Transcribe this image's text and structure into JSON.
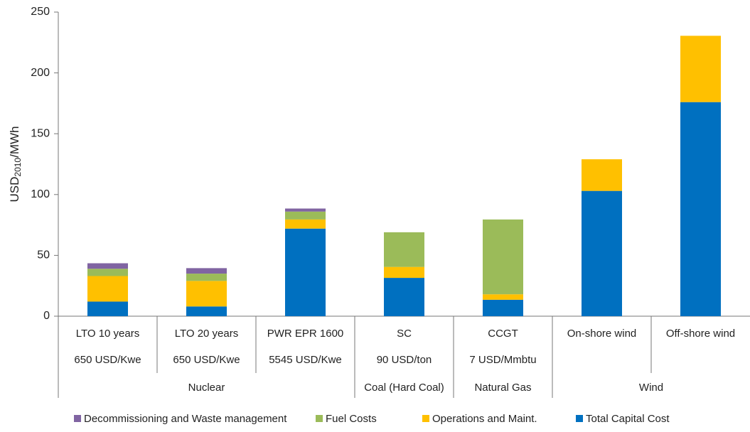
{
  "chart_data": {
    "type": "stacked_bar",
    "ylabel": [
      "USD",
      "2010",
      "/MWh"
    ],
    "categories": [
      "LTO 10 years",
      "LTO 20 years",
      "PWR EPR 1600",
      "SC",
      "CCGT",
      "On-shore wind",
      "Off-shore wind"
    ],
    "sublabels": [
      "650 USD/Kwe",
      "650 USD/Kwe",
      "5545 USD/Kwe",
      "90 USD/ton",
      "7 USD/Mmbtu",
      null,
      null
    ],
    "groups": [
      {
        "label": "Nuclear",
        "span": 3
      },
      {
        "label": "Coal (Hard Coal)",
        "span": 1
      },
      {
        "label": "Natural Gas",
        "span": 1
      },
      {
        "label": "Wind",
        "span": 2
      }
    ],
    "series": [
      {
        "name": "Total Capital Cost",
        "color": "#0070c0",
        "values": [
          12,
          8,
          72,
          31.5,
          13.5,
          103,
          176
        ]
      },
      {
        "name": "Operations and Maint.",
        "color": "#ffc000",
        "values": [
          21,
          21,
          7.5,
          9,
          4.5,
          26,
          54.5
        ]
      },
      {
        "name": "Fuel Costs",
        "color": "#9bbb59",
        "values": [
          6,
          6,
          6.5,
          28.5,
          61.5,
          0,
          0
        ]
      },
      {
        "name": "Decommissioning and Waste management",
        "color": "#8064a2",
        "values": [
          4.5,
          4.5,
          2.5,
          0,
          0,
          0,
          0
        ]
      }
    ],
    "legend": "bottom",
    "ylim": [
      0,
      250
    ],
    "yticks": [
      0,
      50,
      100,
      150,
      200,
      250
    ]
  }
}
